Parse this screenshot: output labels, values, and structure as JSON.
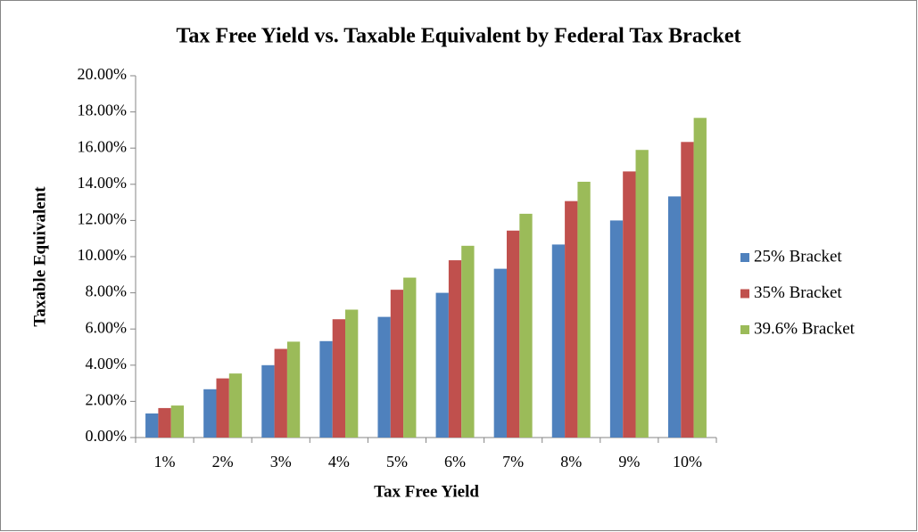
{
  "chart_data": {
    "type": "bar",
    "title": "Tax Free Yield vs. Taxable Equivalent by Federal Tax Bracket",
    "x_label": "Tax Free Yield",
    "y_label": "Taxable Equivalent",
    "categories": [
      "1%",
      "2%",
      "3%",
      "4%",
      "5%",
      "6%",
      "7%",
      "8%",
      "9%",
      "10%"
    ],
    "series": [
      {
        "name": "25% Bracket",
        "color": "#4f81bd",
        "values": [
          1.33,
          2.67,
          4.0,
          5.33,
          6.67,
          8.0,
          9.33,
          10.67,
          12.0,
          13.33
        ]
      },
      {
        "name": "35% Bracket",
        "color": "#c0504d",
        "values": [
          1.63,
          3.27,
          4.9,
          6.54,
          8.17,
          9.8,
          11.44,
          13.07,
          14.71,
          16.34
        ]
      },
      {
        "name": "39.6% Bracket",
        "color": "#9bbb59",
        "values": [
          1.77,
          3.54,
          5.3,
          7.07,
          8.84,
          10.6,
          12.37,
          14.14,
          15.9,
          17.67
        ]
      }
    ],
    "ylim": [
      0,
      20
    ],
    "yticks": [
      {
        "value": 0,
        "label": "0.00%"
      },
      {
        "value": 2,
        "label": "2.00%"
      },
      {
        "value": 4,
        "label": "4.00%"
      },
      {
        "value": 6,
        "label": "6.00%"
      },
      {
        "value": 8,
        "label": "8.00%"
      },
      {
        "value": 10,
        "label": "10.00%"
      },
      {
        "value": 12,
        "label": "12.00%"
      },
      {
        "value": 14,
        "label": "14.00%"
      },
      {
        "value": 16,
        "label": "16.00%"
      },
      {
        "value": 18,
        "label": "18.00%"
      },
      {
        "value": 20,
        "label": "20.00%"
      }
    ],
    "grid": false,
    "legend": "right"
  }
}
